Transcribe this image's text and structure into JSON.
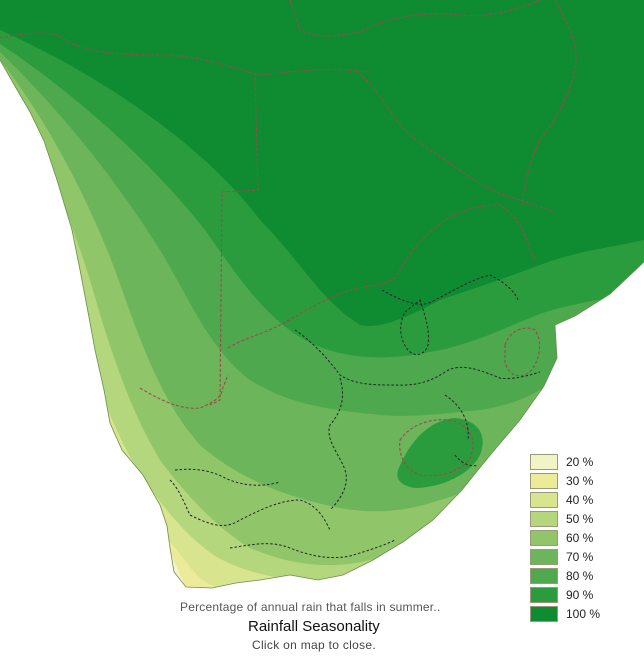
{
  "map": {
    "title": "Rainfall Seasonality",
    "subtitle": "Percentage of annual rain that falls in summer..",
    "close_hint": "Click on map to close.",
    "background_color": "#ffffff"
  },
  "legend": {
    "items": [
      {
        "label": "20 %",
        "value": 20,
        "color": "#f3f3c8"
      },
      {
        "label": "30 %",
        "value": 30,
        "color": "#ebeb9a"
      },
      {
        "label": "40 %",
        "value": 40,
        "color": "#d8e48e"
      },
      {
        "label": "50 %",
        "value": 50,
        "color": "#b4d67c"
      },
      {
        "label": "60 %",
        "value": 60,
        "color": "#90c56a"
      },
      {
        "label": "70 %",
        "value": 70,
        "color": "#6cb55a"
      },
      {
        "label": "80 %",
        "value": 80,
        "color": "#4ea84e"
      },
      {
        "label": "90 %",
        "value": 90,
        "color": "#2b9c3e"
      },
      {
        "label": "100 %",
        "value": 100,
        "color": "#0f8c32"
      }
    ]
  },
  "colors": {
    "border_country": "#9b4a4a",
    "border_province": "#222222"
  }
}
